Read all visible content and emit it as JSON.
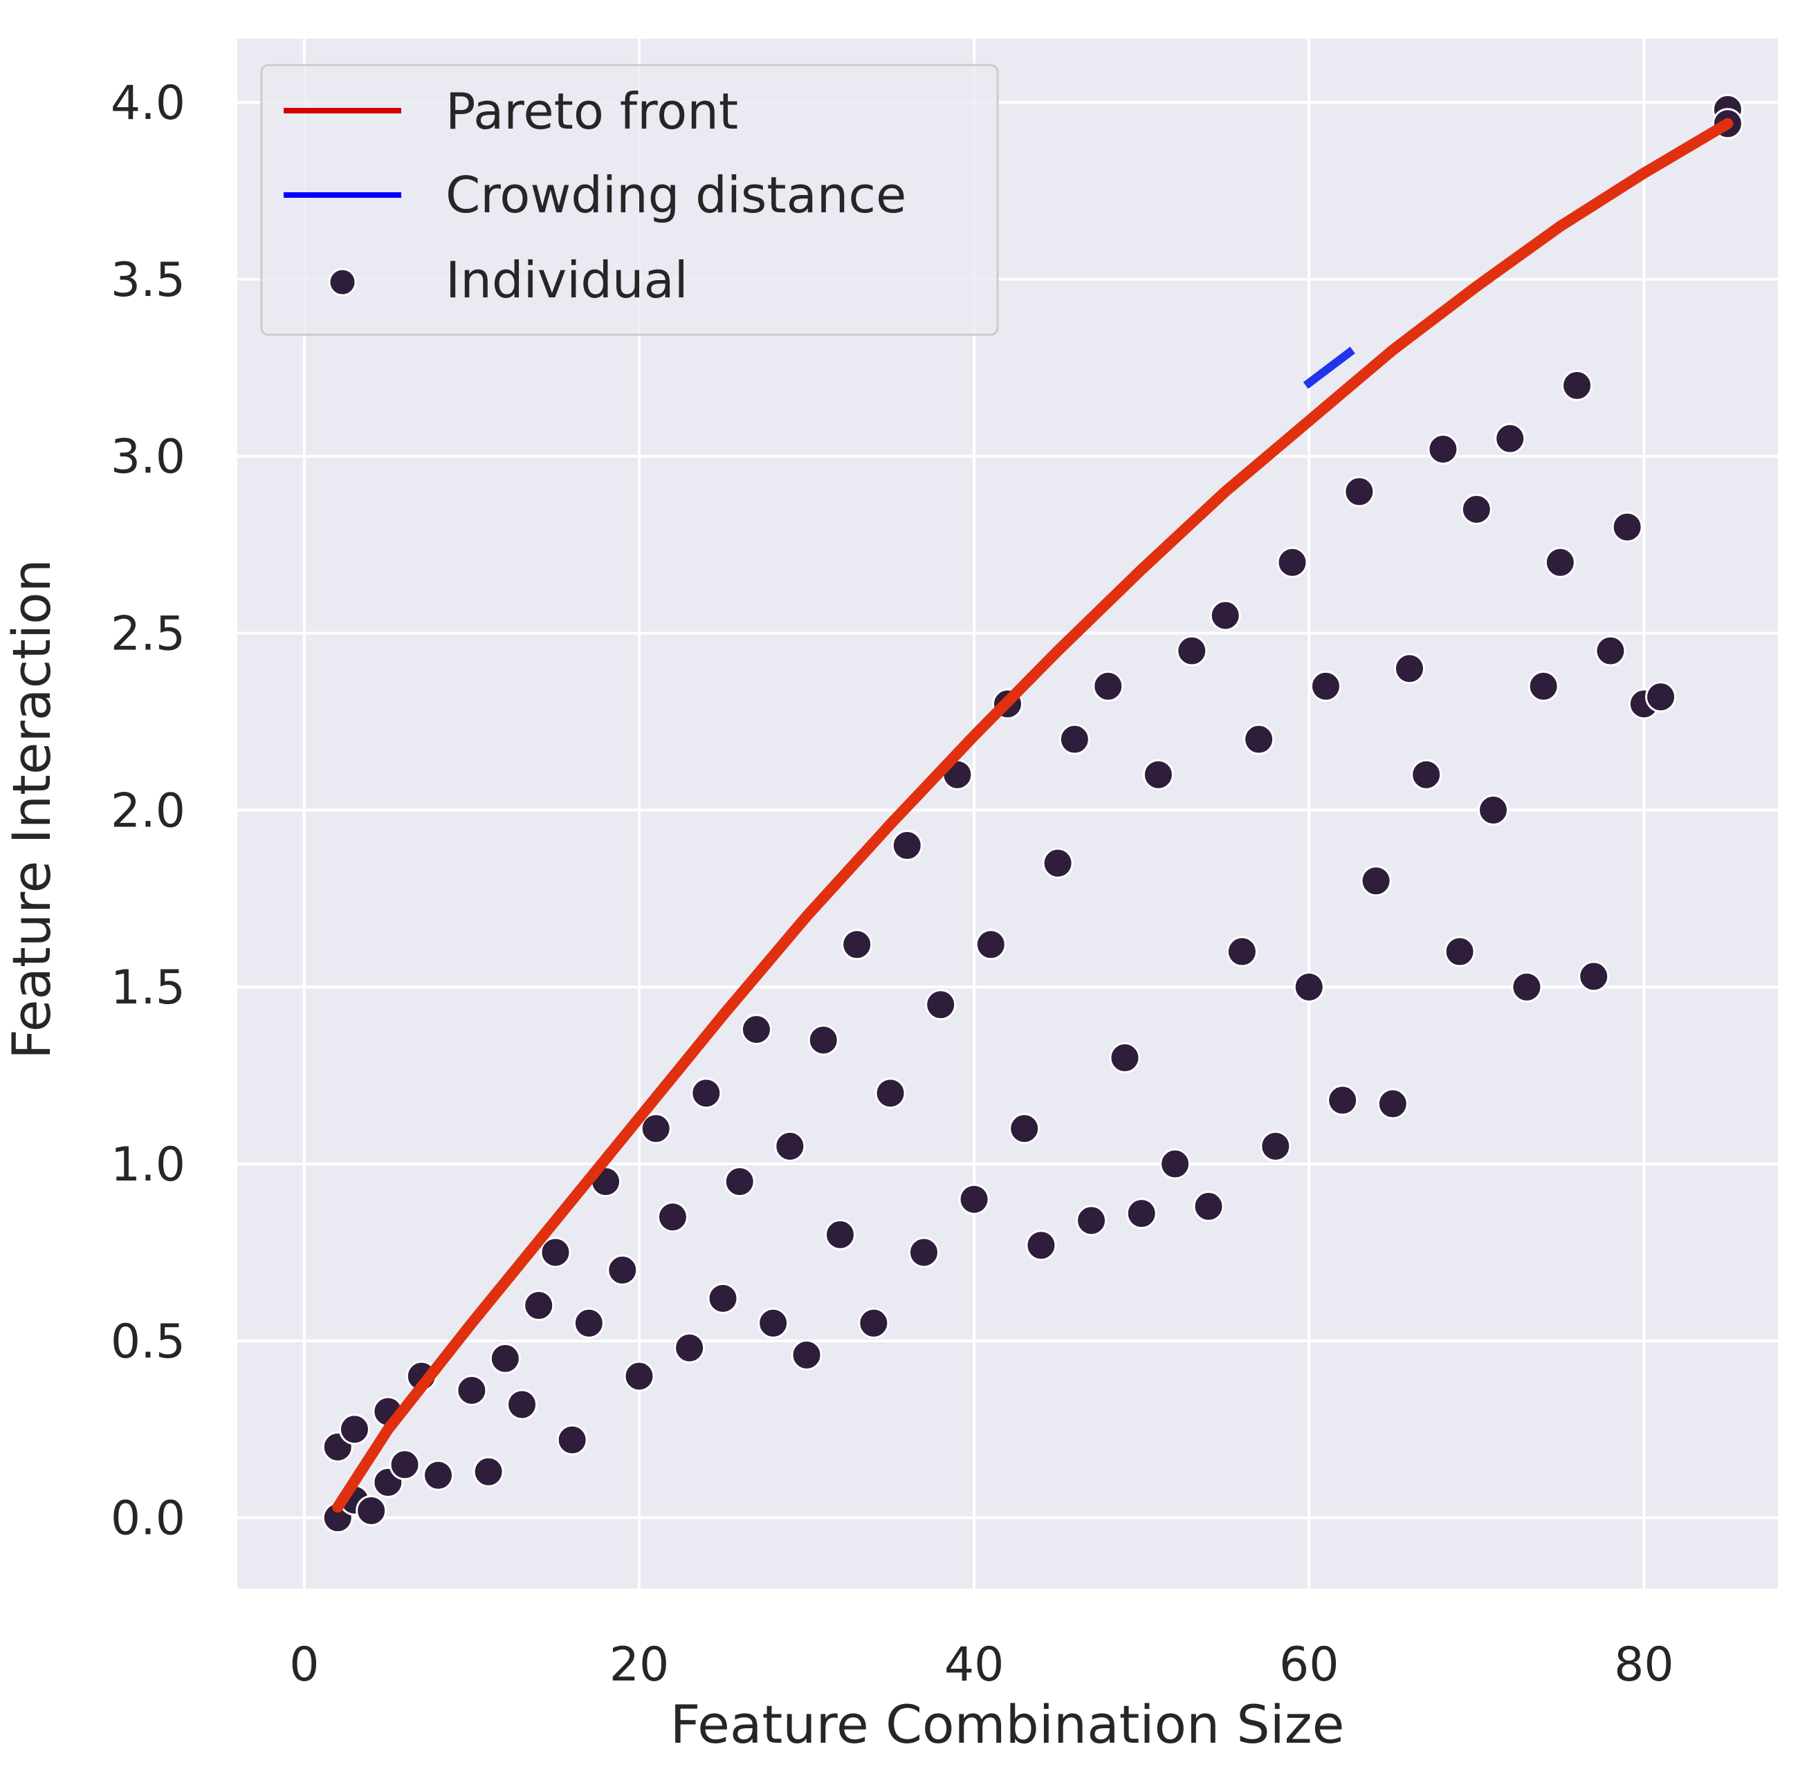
{
  "chart_data": {
    "type": "scatter",
    "title": "",
    "xlabel": "Feature Combination Size",
    "ylabel": "Feature Interaction",
    "xlim": [
      -4,
      88
    ],
    "ylim": [
      -0.2,
      4.18
    ],
    "xticks": [
      0,
      20,
      40,
      60,
      80
    ],
    "yticks": [
      0.0,
      0.5,
      1.0,
      1.5,
      2.0,
      2.5,
      3.0,
      3.5,
      4.0
    ],
    "xtick_labels": [
      "0",
      "20",
      "40",
      "60",
      "80"
    ],
    "ytick_labels": [
      "0.0",
      "0.5",
      "1.0",
      "1.5",
      "2.0",
      "2.5",
      "3.0",
      "3.5",
      "4.0"
    ],
    "grid": true,
    "legend_position": "top-left",
    "colors": {
      "background": "#eaeaf2",
      "grid": "#ffffff",
      "pareto": "#e03010",
      "crowding": "#2233ee",
      "individual": "#2e1e3b",
      "individual_edge": "#ffffff"
    },
    "legend": [
      {
        "label": "Pareto front",
        "kind": "line",
        "color": "#d40000"
      },
      {
        "label": "Crowding distance",
        "kind": "line",
        "color": "#0000ff"
      },
      {
        "label": "Individual",
        "kind": "marker",
        "color": "#2e1e3b"
      }
    ],
    "series": [
      {
        "name": "Pareto front",
        "type": "line",
        "x": [
          2,
          5,
          10,
          15,
          20,
          25,
          30,
          35,
          40,
          45,
          50,
          55,
          60,
          65,
          70,
          75,
          80,
          85
        ],
        "y": [
          0.03,
          0.25,
          0.55,
          0.84,
          1.13,
          1.42,
          1.7,
          1.96,
          2.21,
          2.45,
          2.68,
          2.9,
          3.1,
          3.3,
          3.48,
          3.65,
          3.8,
          3.94
        ]
      },
      {
        "name": "Crowding distance",
        "type": "line",
        "x": [
          59.8,
          62.6
        ],
        "y": [
          3.2,
          3.3
        ]
      },
      {
        "name": "Individual",
        "type": "scatter",
        "points": [
          [
            2,
            0.0
          ],
          [
            2,
            0.2
          ],
          [
            3,
            0.05
          ],
          [
            3,
            0.25
          ],
          [
            4,
            0.02
          ],
          [
            5,
            0.1
          ],
          [
            5,
            0.3
          ],
          [
            6,
            0.15
          ],
          [
            7,
            0.4
          ],
          [
            8,
            0.12
          ],
          [
            10,
            0.36
          ],
          [
            11,
            0.13
          ],
          [
            12,
            0.45
          ],
          [
            13,
            0.32
          ],
          [
            14,
            0.6
          ],
          [
            15,
            0.75
          ],
          [
            16,
            0.22
          ],
          [
            17,
            0.55
          ],
          [
            18,
            0.95
          ],
          [
            19,
            0.7
          ],
          [
            20,
            0.4
          ],
          [
            21,
            1.1
          ],
          [
            22,
            0.85
          ],
          [
            23,
            0.48
          ],
          [
            24,
            1.2
          ],
          [
            25,
            0.62
          ],
          [
            26,
            0.95
          ],
          [
            27,
            1.38
          ],
          [
            28,
            0.55
          ],
          [
            29,
            1.05
          ],
          [
            30,
            0.46
          ],
          [
            31,
            1.35
          ],
          [
            32,
            0.8
          ],
          [
            33,
            1.62
          ],
          [
            34,
            0.55
          ],
          [
            35,
            1.2
          ],
          [
            36,
            1.9
          ],
          [
            37,
            0.75
          ],
          [
            38,
            1.45
          ],
          [
            39,
            2.1
          ],
          [
            40,
            0.9
          ],
          [
            41,
            1.62
          ],
          [
            42,
            2.3
          ],
          [
            43,
            1.1
          ],
          [
            44,
            0.77
          ],
          [
            45,
            1.85
          ],
          [
            46,
            2.2
          ],
          [
            47,
            0.84
          ],
          [
            48,
            2.35
          ],
          [
            49,
            1.3
          ],
          [
            50,
            0.86
          ],
          [
            51,
            2.1
          ],
          [
            52,
            1.0
          ],
          [
            53,
            2.45
          ],
          [
            54,
            0.88
          ],
          [
            55,
            2.55
          ],
          [
            56,
            1.6
          ],
          [
            57,
            2.2
          ],
          [
            58,
            1.05
          ],
          [
            59,
            2.7
          ],
          [
            60,
            1.5
          ],
          [
            61,
            2.35
          ],
          [
            62,
            1.18
          ],
          [
            63,
            2.9
          ],
          [
            64,
            1.8
          ],
          [
            65,
            1.17
          ],
          [
            66,
            2.4
          ],
          [
            67,
            2.1
          ],
          [
            68,
            3.02
          ],
          [
            69,
            1.6
          ],
          [
            70,
            2.85
          ],
          [
            71,
            2.0
          ],
          [
            72,
            3.05
          ],
          [
            73,
            1.5
          ],
          [
            74,
            2.35
          ],
          [
            75,
            2.7
          ],
          [
            76,
            3.2
          ],
          [
            77,
            1.53
          ],
          [
            78,
            2.45
          ],
          [
            79,
            2.8
          ],
          [
            80,
            2.3
          ],
          [
            81,
            2.32
          ],
          [
            85,
            3.98
          ],
          [
            85,
            3.94
          ]
        ]
      }
    ]
  }
}
